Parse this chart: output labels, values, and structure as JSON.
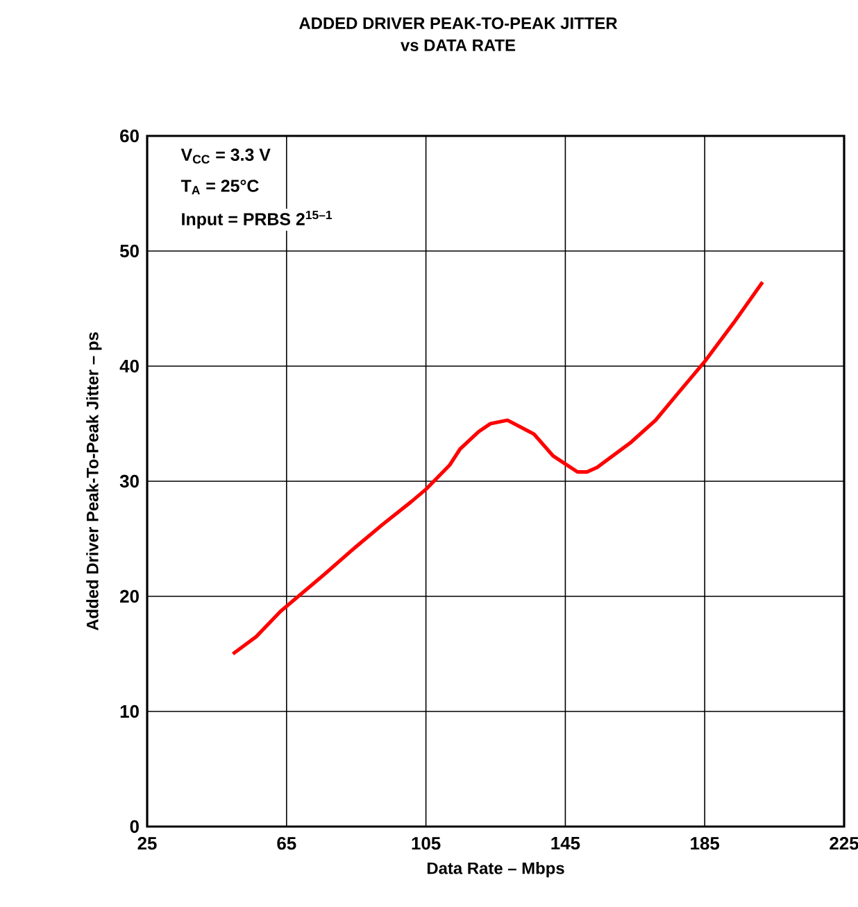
{
  "chart_data": {
    "type": "line",
    "title": "ADDED DRIVER PEAK-TO-PEAK JITTER",
    "subtitle": "vs DATA RATE",
    "xlabel": "Data Rate – Mbps",
    "ylabel": "Added Driver Peak-To-Peak Jitter – ps",
    "annotations": [
      "V$_{CC}$ = 3.3 V",
      "T$_{A}$ = 25°C",
      "Input = PRBS 2$^{15–1}$"
    ],
    "x": [
      49.6,
      56.3,
      63.3,
      75.8,
      84.1,
      92.4,
      100.7,
      105,
      111.8,
      114.8,
      120.1,
      123.5,
      128.4,
      136.0,
      141.5,
      148.5,
      151.2,
      154.1,
      163.9,
      170.9,
      177.2,
      185,
      193.4,
      201.6
    ],
    "series": [
      {
        "color": "#ff0000",
        "values": [
          15.0,
          16.5,
          18.7,
          21.9,
          24.1,
          26.2,
          28.2,
          29.3,
          31.4,
          32.8,
          34.3,
          35.0,
          35.3,
          34.1,
          32.2,
          30.8,
          30.8,
          31.2,
          33.4,
          35.3,
          37.6,
          40.4,
          43.8,
          47.3
        ]
      }
    ],
    "xlim": [
      25,
      225
    ],
    "ylim": [
      0,
      60
    ],
    "xticks": [
      25,
      65,
      105,
      145,
      185,
      225
    ],
    "yticks": [
      0,
      10,
      20,
      30,
      40,
      50,
      60
    ],
    "grid": true,
    "marker": "none",
    "line_style": "solid"
  }
}
